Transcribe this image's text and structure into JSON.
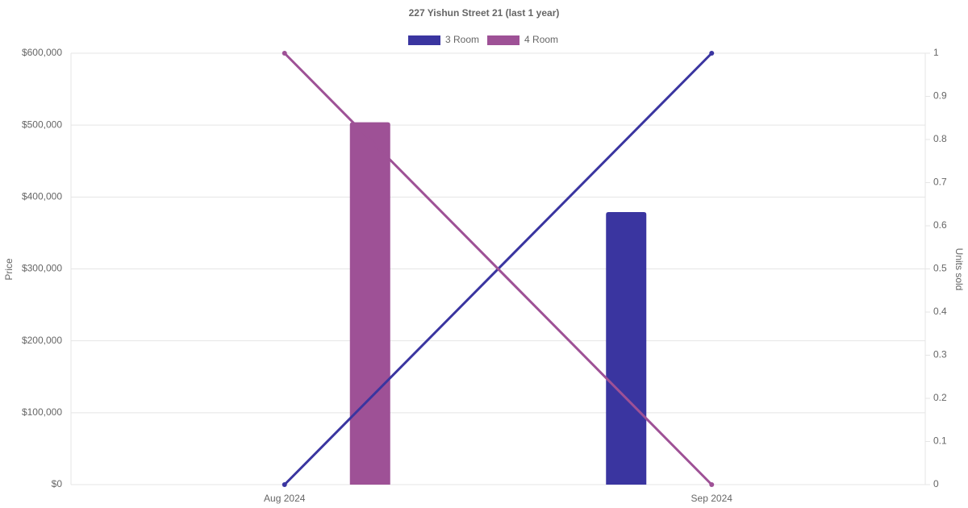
{
  "chart_data": {
    "type": "bar-line",
    "title": "227 Yishun Street 21 (last 1 year)",
    "categories": [
      "Aug 2024",
      "Sep 2024"
    ],
    "series": [
      {
        "name": "3 Room",
        "color": "#3a35a0",
        "values": [
          null,
          379000
        ],
        "units_sold": [
          0,
          1
        ]
      },
      {
        "name": "4 Room",
        "color": "#9e5196",
        "values": [
          504000,
          null
        ],
        "units_sold": [
          1,
          0
        ]
      }
    ],
    "y_label": "Price",
    "y2_label": "Units sold",
    "ylim": [
      0,
      600000
    ],
    "yticks": [
      {
        "value": 0,
        "label": "$0"
      },
      {
        "value": 100000,
        "label": "$100,000"
      },
      {
        "value": 200000,
        "label": "$200,000"
      },
      {
        "value": 300000,
        "label": "$300,000"
      },
      {
        "value": 400000,
        "label": "$400,000"
      },
      {
        "value": 500000,
        "label": "$500,000"
      },
      {
        "value": 600000,
        "label": "$600,000"
      }
    ],
    "y2lim": [
      0,
      1
    ],
    "y2ticks": [
      0,
      0.1,
      0.2,
      0.3,
      0.4,
      0.5,
      0.6,
      0.7,
      0.8,
      0.9,
      1
    ],
    "grid": true
  }
}
